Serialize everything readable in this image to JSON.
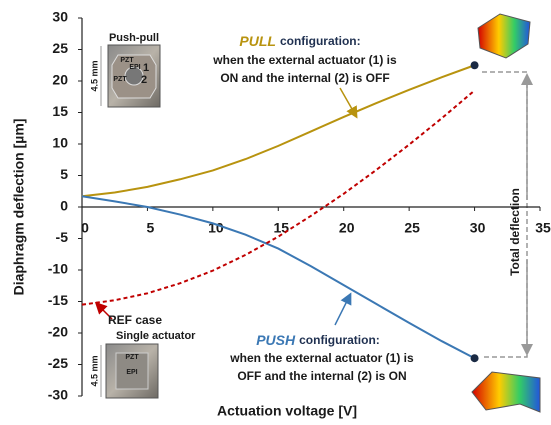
{
  "chart_data": {
    "type": "line",
    "x_label": "Actuation voltage  [V]",
    "y_label": "Diaphragm  deflection [µm]",
    "xlim": [
      0,
      35
    ],
    "xticks": [
      0,
      5,
      10,
      15,
      20,
      25,
      30,
      35
    ],
    "ylim": [
      -30,
      30
    ],
    "yticks": [
      -30,
      -25,
      -20,
      -15,
      -10,
      -5,
      0,
      5,
      10,
      15,
      20,
      25,
      30
    ],
    "x": [
      0,
      2.5,
      5,
      7.5,
      10,
      12.5,
      15,
      17.5,
      20,
      22.5,
      25,
      27.5,
      30
    ],
    "series": [
      {
        "name": "PULL",
        "color": "#b8930f",
        "dashed": false,
        "values": [
          1.7,
          2.3,
          3.2,
          4.4,
          5.8,
          7.6,
          9.7,
          12.0,
          14.3,
          16.5,
          18.6,
          20.6,
          22.5
        ]
      },
      {
        "name": "PUSH",
        "color": "#3b78b4",
        "dashed": false,
        "values": [
          1.7,
          0.9,
          0.0,
          -1.2,
          -2.6,
          -4.4,
          -6.6,
          -9.4,
          -12.4,
          -15.4,
          -18.4,
          -21.3,
          -24.0
        ]
      },
      {
        "name": "REF case",
        "color": "#c00000",
        "dashed": true,
        "values": [
          -15.5,
          -14.8,
          -13.7,
          -12.1,
          -10.1,
          -7.6,
          -4.7,
          -1.4,
          2.1,
          5.9,
          9.9,
          14.1,
          18.5
        ]
      }
    ],
    "annotations": [
      "Push-pull",
      "configuration:",
      "when the external actuator (1) is",
      "ON and the internal (2) is OFF",
      "configuration:",
      "when the external actuator (1) is",
      "OFF and the internal (2) is ON",
      "Single actuator",
      "Total deflection",
      "4.5 mm",
      "4.5 mm",
      "PZT",
      "PZT",
      "EPI",
      "1",
      "2",
      "PZT",
      "EPI"
    ]
  }
}
